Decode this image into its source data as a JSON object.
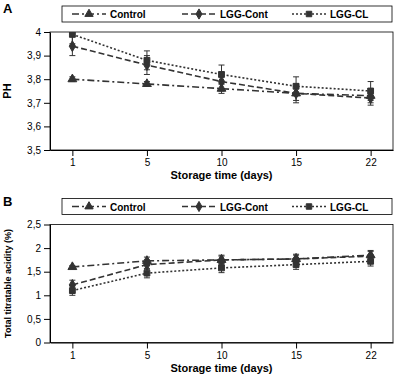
{
  "chart_data": [
    {
      "type": "line",
      "title": "A",
      "x_label": "Storage time (days)",
      "y_label": "PH",
      "categories": [
        "1",
        "5",
        "10",
        "15",
        "22"
      ],
      "ylim": [
        3.5,
        4
      ],
      "yticks": [
        {
          "value": 3.5,
          "label": "3,5"
        },
        {
          "value": 3.6,
          "label": "3,6"
        },
        {
          "value": 3.7,
          "label": "3,7"
        },
        {
          "value": 3.8,
          "label": "3,8"
        },
        {
          "value": 3.9,
          "label": "3,9"
        },
        4
      ],
      "legend": "top",
      "series": [
        {
          "name": "Control",
          "color": "#333333",
          "marker": "triangle",
          "line_style": "dashdot",
          "values": [
            3.8,
            3.78,
            3.76,
            3.74,
            3.73
          ],
          "errors": [
            0.01,
            0.01,
            0.02,
            0.03,
            0.03
          ]
        },
        {
          "name": "LGG-Cont",
          "color": "#333333",
          "marker": "diamond",
          "line_style": "dashed",
          "values": [
            3.94,
            3.86,
            3.79,
            3.74,
            3.72
          ],
          "errors": [
            0.04,
            0.04,
            0.04,
            0.04,
            0.03
          ]
        },
        {
          "name": "LGG-CL",
          "color": "#333333",
          "marker": "square",
          "line_style": "dotted",
          "values": [
            3.99,
            3.88,
            3.82,
            3.77,
            3.75
          ],
          "errors": [
            0.04,
            0.04,
            0.04,
            0.04,
            0.04
          ]
        }
      ]
    },
    {
      "type": "line",
      "title": "B",
      "x_label": "Storage time (days)",
      "y_label": "Total titratable acidity (%)",
      "categories": [
        "1",
        "5",
        "10",
        "15",
        "22"
      ],
      "ylim": [
        0,
        2.5
      ],
      "yticks": [
        0,
        {
          "value": 0.5,
          "label": "0,5"
        },
        1,
        {
          "value": 1.5,
          "label": "1,5"
        },
        2,
        {
          "value": 2.5,
          "label": "2,5"
        }
      ],
      "legend": "top",
      "series": [
        {
          "name": "Control",
          "color": "#333333",
          "marker": "triangle",
          "line_style": "dashdot",
          "values": [
            1.6,
            1.73,
            1.75,
            1.77,
            1.85
          ],
          "errors": [
            0.03,
            0.08,
            0.08,
            0.08,
            0.1
          ]
        },
        {
          "name": "LGG-Cont",
          "color": "#333333",
          "marker": "diamond",
          "line_style": "dashed",
          "values": [
            1.22,
            1.65,
            1.75,
            1.77,
            1.83
          ],
          "errors": [
            0.1,
            0.1,
            0.1,
            0.1,
            0.1
          ]
        },
        {
          "name": "LGG-CL",
          "color": "#333333",
          "marker": "square",
          "line_style": "dotted",
          "values": [
            1.1,
            1.47,
            1.58,
            1.65,
            1.72
          ],
          "errors": [
            0.1,
            0.1,
            0.1,
            0.1,
            0.1
          ]
        }
      ]
    }
  ]
}
